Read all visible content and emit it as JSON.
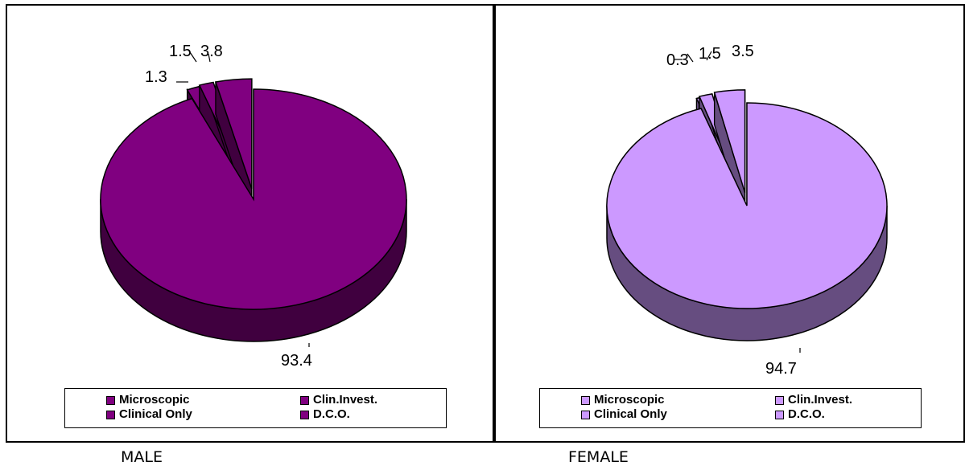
{
  "chart_data": [
    {
      "type": "pie",
      "title": "",
      "categories": [
        "Microscopic",
        "Clin.Invest.",
        "Clinical Only",
        "D.C.O."
      ],
      "values": [
        93.4,
        1.3,
        1.5,
        3.8
      ],
      "value_labels": [
        "93.4",
        "1.3",
        "1.5",
        "3.8"
      ],
      "color": "#800080",
      "side_color": "#40003f",
      "legend_placement": "bottom",
      "caption": "MALE"
    },
    {
      "type": "pie",
      "title": "",
      "categories": [
        "Microscopic",
        "Clin.Invest.",
        "Clinical Only",
        "D.C.O."
      ],
      "values": [
        94.7,
        0.3,
        1.5,
        3.5
      ],
      "value_labels": [
        "94.7",
        "0.3",
        "1.5",
        "3.5"
      ],
      "color": "#cc99ff",
      "side_color": "#664d80",
      "legend_placement": "bottom",
      "caption": "FEMALE"
    }
  ]
}
